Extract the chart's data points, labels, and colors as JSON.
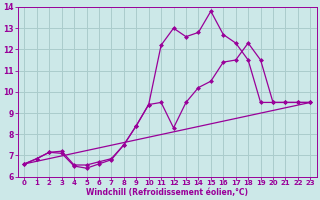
{
  "xlabel": "Windchill (Refroidissement éolien,°C)",
  "bg_color": "#cce8e8",
  "grid_color": "#aacccc",
  "line_color": "#990099",
  "xlim": [
    -0.5,
    23.5
  ],
  "ylim": [
    6,
    14
  ],
  "xticks": [
    0,
    1,
    2,
    3,
    4,
    5,
    6,
    7,
    8,
    9,
    10,
    11,
    12,
    13,
    14,
    15,
    16,
    17,
    18,
    19,
    20,
    21,
    22,
    23
  ],
  "yticks": [
    6,
    7,
    8,
    9,
    10,
    11,
    12,
    13,
    14
  ],
  "series1_x": [
    0,
    1,
    2,
    3,
    4,
    5,
    6,
    7,
    8,
    9,
    10,
    11,
    12,
    13,
    14,
    15,
    16,
    17,
    18,
    19,
    20,
    21,
    22,
    23
  ],
  "series1_y": [
    6.6,
    6.85,
    7.15,
    7.2,
    6.55,
    6.55,
    6.7,
    6.85,
    7.5,
    8.4,
    9.4,
    9.5,
    8.3,
    9.5,
    10.2,
    10.5,
    11.4,
    11.5,
    12.3,
    11.5,
    9.5,
    9.5,
    9.5,
    9.5
  ],
  "series2_x": [
    0,
    1,
    2,
    3,
    4,
    5,
    6,
    7,
    8,
    9,
    10,
    11,
    12,
    13,
    14,
    15,
    16,
    17,
    18,
    19,
    20,
    21,
    22,
    23
  ],
  "series2_y": [
    6.6,
    6.85,
    7.15,
    7.1,
    6.5,
    6.4,
    6.6,
    6.8,
    7.5,
    8.4,
    9.4,
    12.2,
    13.0,
    12.6,
    12.8,
    13.8,
    12.7,
    12.3,
    11.5,
    9.5,
    9.5,
    9.5,
    9.5,
    9.5
  ],
  "series3_x": [
    0,
    23
  ],
  "series3_y": [
    6.6,
    9.5
  ],
  "marker": "D",
  "marker_size": 2.5,
  "linewidth": 0.9
}
